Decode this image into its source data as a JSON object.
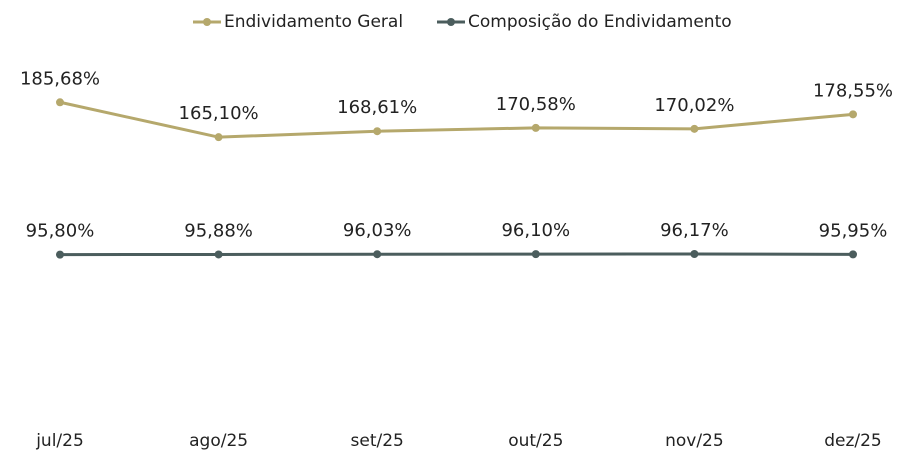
{
  "chart_data": {
    "type": "line",
    "categories": [
      "jul/25",
      "ago/25",
      "set/25",
      "out/25",
      "nov/25",
      "dez/25"
    ],
    "series": [
      {
        "name": "Endividamento Geral",
        "color": "#b5a86c",
        "values": [
          185.68,
          165.1,
          168.61,
          170.58,
          170.02,
          178.55
        ],
        "value_labels": [
          "185,68%",
          "165,10%",
          "168,61%",
          "170,58%",
          "170,02%",
          "178,55%"
        ]
      },
      {
        "name": "Composição do Endividamento",
        "color": "#4b5d5d",
        "values": [
          95.8,
          95.88,
          96.03,
          96.1,
          96.17,
          95.95
        ],
        "value_labels": [
          "95,80%",
          "95,88%",
          "96,03%",
          "96,10%",
          "96,17%",
          "95,95%"
        ]
      }
    ],
    "ylim": [
      0,
      200
    ],
    "legend": "top"
  }
}
